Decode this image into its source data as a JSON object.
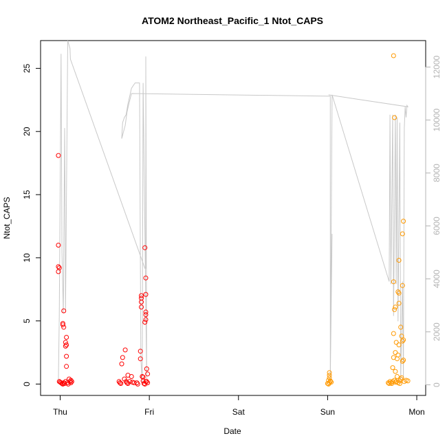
{
  "chart_data": {
    "type": "scatter",
    "title": "ATOM2 Northeast_Pacific_1 Ntot_CAPS",
    "xlabel": "Date",
    "ylabel": "Ntot_CAPS",
    "x_tick_labels": [
      "Thu",
      "Fri",
      "Sat",
      "Sun",
      "Mon"
    ],
    "xlim_days": [
      -0.22,
      4.1
    ],
    "ylim": [
      -0.9,
      27.2
    ],
    "y_ticks": [
      0,
      5,
      10,
      15,
      20,
      25
    ],
    "y2lim": [
      -400,
      13000
    ],
    "y2_ticks": [
      0,
      2000,
      4000,
      6000,
      8000,
      10000,
      12000
    ],
    "grid": false,
    "colors": {
      "red_series": "#ff0000",
      "orange_series": "#ff9900",
      "line": "#c8c8c8",
      "axis2": "#b3b3b3"
    },
    "series": [
      {
        "color": "red",
        "points": [
          [
            -0.02,
            18.1
          ],
          [
            -0.02,
            11.0
          ],
          [
            -0.02,
            9.3
          ],
          [
            -0.01,
            9.2
          ],
          [
            -0.02,
            8.9
          ],
          [
            0.04,
            5.8
          ],
          [
            0.03,
            4.8
          ],
          [
            0.03,
            4.7
          ],
          [
            0.04,
            4.5
          ],
          [
            0.07,
            3.7
          ],
          [
            0.06,
            3.3
          ],
          [
            0.07,
            3.1
          ],
          [
            0.06,
            3.0
          ],
          [
            0.07,
            2.2
          ],
          [
            0.07,
            1.4
          ],
          [
            0.1,
            0.4
          ],
          [
            0.12,
            0.3
          ],
          [
            0.11,
            0.2
          ],
          [
            0.13,
            0.2
          ],
          [
            0.08,
            0.1
          ],
          [
            0.0,
            0.15
          ],
          [
            0.02,
            0.05
          ],
          [
            0.04,
            0.1
          ],
          [
            0.06,
            0.2
          ],
          [
            0.09,
            0.0
          ],
          [
            0.05,
            0.05
          ],
          [
            -0.01,
            0.2
          ],
          [
            0.01,
            0.1
          ],
          [
            0.03,
            0.0
          ],
          [
            0.12,
            0.1
          ],
          [
            0.92,
            0.6
          ],
          [
            0.93,
            0.55
          ],
          [
            0.93,
            0.25
          ],
          [
            0.73,
            2.7
          ],
          [
            0.7,
            2.1
          ],
          [
            0.69,
            1.6
          ],
          [
            0.76,
            0.7
          ],
          [
            0.8,
            0.6
          ],
          [
            0.72,
            0.4
          ],
          [
            0.74,
            0.2
          ],
          [
            0.75,
            0.1
          ],
          [
            0.78,
            0.2
          ],
          [
            0.83,
            0.1
          ],
          [
            0.86,
            0.1
          ],
          [
            0.87,
            0.0
          ],
          [
            0.76,
            0.05
          ],
          [
            0.81,
            0.15
          ],
          [
            0.67,
            0.1
          ],
          [
            0.68,
            0.05
          ],
          [
            0.66,
            0.2
          ],
          [
            0.9,
            2.0
          ],
          [
            0.9,
            2.6
          ],
          [
            0.91,
            6.1
          ],
          [
            0.91,
            6.5
          ],
          [
            0.91,
            6.8
          ],
          [
            0.91,
            7.0
          ],
          [
            0.95,
            10.8
          ],
          [
            0.96,
            8.4
          ],
          [
            0.96,
            7.1
          ],
          [
            0.96,
            5.7
          ],
          [
            0.96,
            5.5
          ],
          [
            0.96,
            5.1
          ],
          [
            0.95,
            4.9
          ],
          [
            0.97,
            1.2
          ],
          [
            0.98,
            0.8
          ],
          [
            0.97,
            0.2
          ],
          [
            0.98,
            0.1
          ],
          [
            0.94,
            0.05
          ],
          [
            0.96,
            0.2
          ],
          [
            0.95,
            0.0
          ]
        ]
      },
      {
        "color": "orange",
        "points": [
          [
            3.02,
            0.9
          ],
          [
            3.02,
            0.7
          ],
          [
            3.02,
            0.5
          ],
          [
            3.01,
            0.3
          ],
          [
            3.03,
            0.2
          ],
          [
            3.02,
            0.1
          ],
          [
            3.0,
            0.05
          ],
          [
            3.04,
            0.15
          ],
          [
            3.01,
            0.0
          ],
          [
            3.03,
            0.25
          ],
          [
            3.74,
            26.0
          ],
          [
            3.75,
            21.1
          ],
          [
            3.74,
            8.1
          ],
          [
            3.76,
            6.1
          ],
          [
            3.75,
            5.9
          ],
          [
            3.74,
            4.0
          ],
          [
            3.77,
            3.3
          ],
          [
            3.76,
            2.5
          ],
          [
            3.74,
            2.1
          ],
          [
            3.79,
            2.3
          ],
          [
            3.85,
            12.9
          ],
          [
            3.84,
            11.9
          ],
          [
            3.8,
            9.8
          ],
          [
            3.79,
            7.3
          ],
          [
            3.8,
            7.2
          ],
          [
            3.8,
            6.4
          ],
          [
            3.84,
            7.8
          ],
          [
            3.82,
            4.5
          ],
          [
            3.83,
            3.8
          ],
          [
            3.84,
            3.4
          ],
          [
            3.85,
            3.5
          ],
          [
            3.8,
            3.1
          ],
          [
            3.78,
            2.0
          ],
          [
            3.85,
            1.9
          ],
          [
            3.84,
            1.8
          ],
          [
            3.73,
            1.3
          ],
          [
            3.76,
            1.0
          ],
          [
            3.78,
            0.6
          ],
          [
            3.82,
            0.4
          ],
          [
            3.83,
            0.5
          ],
          [
            3.7,
            0.2
          ],
          [
            3.71,
            0.1
          ],
          [
            3.72,
            0.05
          ],
          [
            3.75,
            0.3
          ],
          [
            3.77,
            0.2
          ],
          [
            3.79,
            0.1
          ],
          [
            3.81,
            0.25
          ],
          [
            3.86,
            0.2
          ],
          [
            3.88,
            0.3
          ],
          [
            3.9,
            0.25
          ],
          [
            3.68,
            0.1
          ],
          [
            3.69,
            0.05
          ],
          [
            3.73,
            0.2
          ],
          [
            3.76,
            0.15
          ],
          [
            3.81,
            0.05
          ]
        ]
      }
    ],
    "line_series": {
      "axis": "right",
      "points": [
        [
          -0.02,
          100
        ],
        [
          -0.01,
          2600
        ],
        [
          0.01,
          12500
        ],
        [
          0.02,
          5000
        ],
        [
          0.035,
          2700
        ],
        [
          0.05,
          9700
        ],
        [
          0.06,
          2800
        ],
        [
          0.085,
          13000
        ],
        [
          0.11,
          12700
        ],
        [
          0.115,
          12300
        ],
        [
          0.95,
          4400
        ],
        [
          0.96,
          4400
        ],
        [
          0.96,
          12400
        ],
        [
          0.97,
          200
        ],
        [
          0.93,
          11400
        ],
        [
          0.92,
          100
        ],
        [
          0.905,
          1000
        ],
        [
          0.89,
          11400
        ],
        [
          0.84,
          11400
        ],
        [
          0.8,
          11200
        ],
        [
          0.76,
          10600
        ],
        [
          0.74,
          10200
        ],
        [
          0.72,
          10100
        ],
        [
          0.7,
          9900
        ],
        [
          0.69,
          9300
        ],
        [
          0.73,
          9800
        ],
        [
          0.75,
          10300
        ],
        [
          0.77,
          10600
        ],
        [
          0.8,
          11000
        ],
        [
          3.03,
          10900
        ],
        [
          3.03,
          300
        ],
        [
          3.05,
          5700
        ],
        [
          3.03,
          200
        ],
        [
          3.05,
          10950
        ],
        [
          3.69,
          3900
        ],
        [
          3.7,
          10200
        ],
        [
          3.71,
          3800
        ],
        [
          3.72,
          6800
        ],
        [
          3.73,
          10200
        ],
        [
          3.74,
          2600
        ],
        [
          3.76,
          10200
        ],
        [
          3.77,
          3800
        ],
        [
          3.78,
          10100
        ],
        [
          3.79,
          2400
        ],
        [
          3.81,
          9900
        ],
        [
          3.82,
          200
        ],
        [
          3.84,
          3900
        ],
        [
          3.85,
          200
        ],
        [
          3.86,
          9700
        ],
        [
          3.87,
          10500
        ],
        [
          3.88,
          10100
        ],
        [
          3.89,
          10550
        ],
        [
          3.9,
          10500
        ],
        [
          3.01,
          10950
        ]
      ]
    }
  }
}
